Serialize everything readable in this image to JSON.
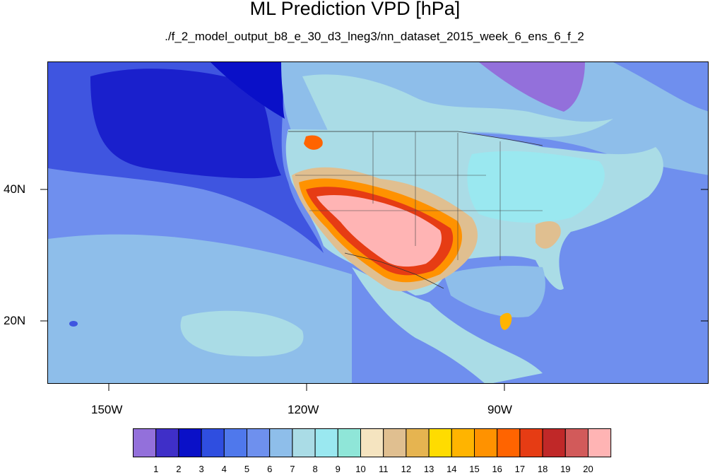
{
  "title": "ML Prediction VPD [hPa]",
  "subtitle": "./f_2_model_output_b8_e_30_d3_lneg3/nn_dataset_2015_week_6_ens_6_f_2",
  "lat_labels": [
    "40N",
    "20N"
  ],
  "lon_labels": [
    "150W",
    "120W",
    "90W"
  ],
  "colorbar": {
    "labels": [
      "1",
      "2",
      "3",
      "4",
      "5",
      "6",
      "7",
      "8",
      "9",
      "10",
      "11",
      "12",
      "13",
      "14",
      "15",
      "16",
      "17",
      "18",
      "19",
      "20"
    ],
    "colors": [
      "#9370db",
      "#3f2fc8",
      "#0a10c8",
      "#2f4ee0",
      "#4f78ec",
      "#6e90ee",
      "#8ebeea",
      "#aadce6",
      "#9ae8f0",
      "#8fe6d8",
      "#f5e4c0",
      "#e0bf90",
      "#e6b450",
      "#ffdc00",
      "#ffb400",
      "#ff9200",
      "#ff6400",
      "#e63c14",
      "#c02828",
      "#d25a5a",
      "#ffb4b4"
    ]
  },
  "palette": {
    "ocean_deep": "#1a20cc",
    "ocean_mid": "#3f55e0",
    "ocean_light": "#6f8fee",
    "sea_pale": "#8ebeea",
    "land_cool": "#aadce6",
    "land_cyan": "#9ae8f0",
    "hot_tan": "#e0bf90",
    "hot_orange": "#ff9200",
    "hot_red": "#e63c14",
    "hot_pink": "#ffb4b4",
    "arctic_purple": "#9370db"
  }
}
